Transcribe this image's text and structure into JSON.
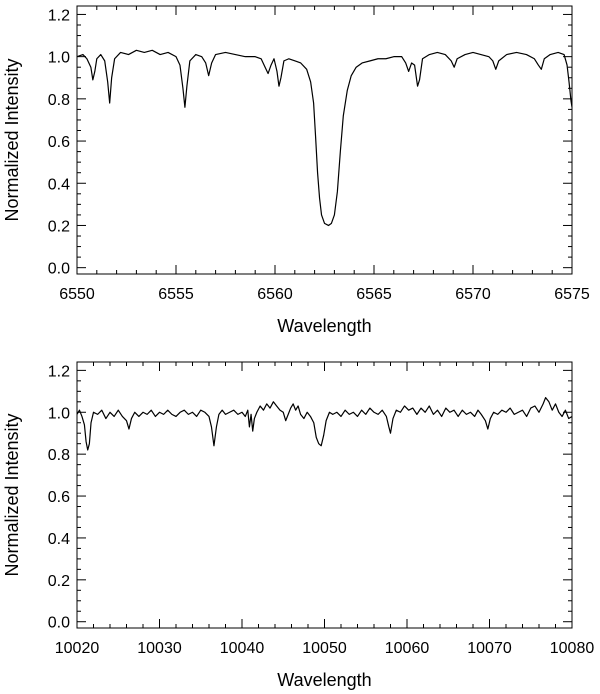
{
  "chart_data": [
    {
      "type": "line",
      "title": "",
      "xlabel": "Wavelength",
      "ylabel": "Normalized Intensity",
      "xlim": [
        6550,
        6575
      ],
      "ylim": [
        -0.03,
        1.24
      ],
      "x_ticks": [
        6550,
        6555,
        6560,
        6565,
        6570,
        6575
      ],
      "x_tick_labels": [
        "6550",
        "6555",
        "6560",
        "6565",
        "6570",
        "6575"
      ],
      "x_minor_step": 1,
      "y_ticks": [
        0.0,
        0.2,
        0.4,
        0.6,
        0.8,
        1.0,
        1.2
      ],
      "y_tick_labels": [
        "0.0",
        "0.2",
        "0.4",
        "0.6",
        "0.8",
        "1.0",
        "1.2"
      ],
      "y_minor_step": 0.05,
      "grid": false,
      "series": [
        {
          "points": [
            [
              6550.0,
              1.0
            ],
            [
              6550.3,
              1.01
            ],
            [
              6550.5,
              0.99
            ],
            [
              6550.7,
              0.95
            ],
            [
              6550.8,
              0.89
            ],
            [
              6550.9,
              0.93
            ],
            [
              6551.0,
              0.99
            ],
            [
              6551.2,
              1.01
            ],
            [
              6551.4,
              0.98
            ],
            [
              6551.55,
              0.88
            ],
            [
              6551.65,
              0.78
            ],
            [
              6551.75,
              0.9
            ],
            [
              6551.9,
              0.99
            ],
            [
              6552.2,
              1.02
            ],
            [
              6552.6,
              1.01
            ],
            [
              6553.0,
              1.03
            ],
            [
              6553.4,
              1.02
            ],
            [
              6553.8,
              1.03
            ],
            [
              6554.2,
              1.01
            ],
            [
              6554.6,
              1.02
            ],
            [
              6555.0,
              1.0
            ],
            [
              6555.2,
              0.96
            ],
            [
              6555.35,
              0.85
            ],
            [
              6555.45,
              0.76
            ],
            [
              6555.55,
              0.86
            ],
            [
              6555.7,
              0.98
            ],
            [
              6556.0,
              1.01
            ],
            [
              6556.3,
              1.0
            ],
            [
              6556.5,
              0.97
            ],
            [
              6556.65,
              0.91
            ],
            [
              6556.8,
              0.97
            ],
            [
              6557.0,
              1.01
            ],
            [
              6557.5,
              1.02
            ],
            [
              6558.0,
              1.01
            ],
            [
              6558.5,
              1.0
            ],
            [
              6559.0,
              1.0
            ],
            [
              6559.3,
              0.99
            ],
            [
              6559.5,
              0.95
            ],
            [
              6559.65,
              0.92
            ],
            [
              6559.8,
              0.96
            ],
            [
              6559.95,
              0.99
            ],
            [
              6560.1,
              0.93
            ],
            [
              6560.2,
              0.86
            ],
            [
              6560.3,
              0.9
            ],
            [
              6560.45,
              0.98
            ],
            [
              6560.7,
              0.99
            ],
            [
              6561.0,
              0.98
            ],
            [
              6561.3,
              0.97
            ],
            [
              6561.6,
              0.94
            ],
            [
              6561.8,
              0.88
            ],
            [
              6561.95,
              0.78
            ],
            [
              6562.05,
              0.62
            ],
            [
              6562.15,
              0.45
            ],
            [
              6562.25,
              0.33
            ],
            [
              6562.35,
              0.25
            ],
            [
              6562.5,
              0.21
            ],
            [
              6562.7,
              0.2
            ],
            [
              6562.85,
              0.21
            ],
            [
              6563.0,
              0.25
            ],
            [
              6563.15,
              0.36
            ],
            [
              6563.3,
              0.55
            ],
            [
              6563.45,
              0.72
            ],
            [
              6563.65,
              0.84
            ],
            [
              6563.85,
              0.91
            ],
            [
              6564.1,
              0.95
            ],
            [
              6564.4,
              0.97
            ],
            [
              6564.8,
              0.98
            ],
            [
              6565.2,
              0.99
            ],
            [
              6565.6,
              0.99
            ],
            [
              6566.0,
              1.0
            ],
            [
              6566.4,
              1.0
            ],
            [
              6566.6,
              0.97
            ],
            [
              6566.75,
              0.93
            ],
            [
              6566.9,
              0.97
            ],
            [
              6567.05,
              0.96
            ],
            [
              6567.2,
              0.86
            ],
            [
              6567.3,
              0.89
            ],
            [
              6567.45,
              0.99
            ],
            [
              6567.8,
              1.01
            ],
            [
              6568.2,
              1.02
            ],
            [
              6568.6,
              1.01
            ],
            [
              6568.9,
              0.98
            ],
            [
              6569.05,
              0.95
            ],
            [
              6569.2,
              0.99
            ],
            [
              6569.6,
              1.01
            ],
            [
              6570.0,
              1.02
            ],
            [
              6570.4,
              1.01
            ],
            [
              6570.8,
              1.0
            ],
            [
              6571.0,
              0.98
            ],
            [
              6571.15,
              0.94
            ],
            [
              6571.3,
              0.98
            ],
            [
              6571.7,
              1.01
            ],
            [
              6572.2,
              1.02
            ],
            [
              6572.7,
              1.01
            ],
            [
              6573.1,
              0.99
            ],
            [
              6573.3,
              0.96
            ],
            [
              6573.45,
              0.94
            ],
            [
              6573.6,
              0.99
            ],
            [
              6573.9,
              1.01
            ],
            [
              6574.3,
              1.02
            ],
            [
              6574.6,
              1.01
            ],
            [
              6574.75,
              0.96
            ],
            [
              6574.85,
              0.88
            ],
            [
              6574.95,
              0.79
            ],
            [
              6575.0,
              0.76
            ]
          ]
        }
      ]
    },
    {
      "type": "line",
      "title": "",
      "xlabel": "Wavelength",
      "ylabel": "Normalized Intensity",
      "xlim": [
        10020,
        10080
      ],
      "ylim": [
        -0.03,
        1.24
      ],
      "x_ticks": [
        10020,
        10030,
        10040,
        10050,
        10060,
        10070,
        10080
      ],
      "x_tick_labels": [
        "10020",
        "10030",
        "10040",
        "10050",
        "10060",
        "10070",
        "10080"
      ],
      "x_minor_step": 2,
      "y_ticks": [
        0.0,
        0.2,
        0.4,
        0.6,
        0.8,
        1.0,
        1.2
      ],
      "y_tick_labels": [
        "0.0",
        "0.2",
        "0.4",
        "0.6",
        "0.8",
        "1.0",
        "1.2"
      ],
      "y_minor_step": 0.05,
      "grid": false,
      "series": [
        {
          "points": [
            [
              10020.0,
              0.99
            ],
            [
              10020.3,
              1.01
            ],
            [
              10020.6,
              0.98
            ],
            [
              10020.9,
              0.94
            ],
            [
              10021.1,
              0.86
            ],
            [
              10021.3,
              0.82
            ],
            [
              10021.5,
              0.85
            ],
            [
              10021.7,
              0.95
            ],
            [
              10022.0,
              1.0
            ],
            [
              10022.5,
              0.99
            ],
            [
              10023.0,
              1.01
            ],
            [
              10023.5,
              0.97
            ],
            [
              10024.0,
              1.0
            ],
            [
              10024.5,
              0.98
            ],
            [
              10025.0,
              1.01
            ],
            [
              10025.5,
              0.98
            ],
            [
              10026.0,
              0.96
            ],
            [
              10026.3,
              0.92
            ],
            [
              10026.6,
              0.97
            ],
            [
              10027.0,
              1.0
            ],
            [
              10027.5,
              0.98
            ],
            [
              10028.0,
              1.0
            ],
            [
              10028.5,
              0.99
            ],
            [
              10029.0,
              1.01
            ],
            [
              10029.5,
              0.98
            ],
            [
              10030.0,
              1.0
            ],
            [
              10030.5,
              0.99
            ],
            [
              10031.0,
              1.01
            ],
            [
              10031.5,
              0.99
            ],
            [
              10032.0,
              0.98
            ],
            [
              10032.5,
              1.0
            ],
            [
              10033.0,
              1.01
            ],
            [
              10033.5,
              0.99
            ],
            [
              10034.0,
              1.0
            ],
            [
              10034.5,
              0.98
            ],
            [
              10035.0,
              1.01
            ],
            [
              10035.5,
              1.0
            ],
            [
              10036.0,
              0.98
            ],
            [
              10036.3,
              0.93
            ],
            [
              10036.6,
              0.84
            ],
            [
              10036.9,
              0.93
            ],
            [
              10037.2,
              0.99
            ],
            [
              10037.6,
              1.01
            ],
            [
              10038.0,
              0.99
            ],
            [
              10038.5,
              1.0
            ],
            [
              10039.0,
              1.01
            ],
            [
              10039.5,
              0.99
            ],
            [
              10040.0,
              1.0
            ],
            [
              10040.4,
              0.98
            ],
            [
              10040.7,
              1.01
            ],
            [
              10040.9,
              0.93
            ],
            [
              10041.1,
              0.99
            ],
            [
              10041.3,
              0.91
            ],
            [
              10041.5,
              0.97
            ],
            [
              10041.8,
              1.0
            ],
            [
              10042.2,
              1.03
            ],
            [
              10042.6,
              1.01
            ],
            [
              10043.0,
              1.04
            ],
            [
              10043.4,
              1.02
            ],
            [
              10043.8,
              1.05
            ],
            [
              10044.2,
              1.03
            ],
            [
              10044.6,
              1.01
            ],
            [
              10045.0,
              1.0
            ],
            [
              10045.3,
              0.96
            ],
            [
              10045.6,
              0.99
            ],
            [
              10045.9,
              1.02
            ],
            [
              10046.2,
              1.04
            ],
            [
              10046.5,
              1.01
            ],
            [
              10046.8,
              1.03
            ],
            [
              10047.1,
              0.99
            ],
            [
              10047.5,
              0.97
            ],
            [
              10047.9,
              1.0
            ],
            [
              10048.3,
              0.98
            ],
            [
              10048.7,
              0.95
            ],
            [
              10049.0,
              0.88
            ],
            [
              10049.3,
              0.85
            ],
            [
              10049.6,
              0.84
            ],
            [
              10049.9,
              0.89
            ],
            [
              10050.2,
              0.96
            ],
            [
              10050.6,
              1.0
            ],
            [
              10051.0,
              0.99
            ],
            [
              10051.5,
              1.0
            ],
            [
              10052.0,
              0.98
            ],
            [
              10052.5,
              1.01
            ],
            [
              10053.0,
              0.99
            ],
            [
              10053.5,
              1.0
            ],
            [
              10054.0,
              0.98
            ],
            [
              10054.5,
              1.01
            ],
            [
              10055.0,
              0.99
            ],
            [
              10055.5,
              1.02
            ],
            [
              10056.0,
              1.0
            ],
            [
              10056.5,
              0.99
            ],
            [
              10057.0,
              1.01
            ],
            [
              10057.5,
              0.98
            ],
            [
              10057.8,
              0.93
            ],
            [
              10058.0,
              0.9
            ],
            [
              10058.3,
              0.97
            ],
            [
              10058.7,
              1.01
            ],
            [
              10059.2,
              1.0
            ],
            [
              10059.7,
              1.03
            ],
            [
              10060.2,
              1.01
            ],
            [
              10060.7,
              1.02
            ],
            [
              10061.2,
              0.99
            ],
            [
              10061.7,
              1.02
            ],
            [
              10062.2,
              1.0
            ],
            [
              10062.7,
              1.03
            ],
            [
              10063.2,
              0.99
            ],
            [
              10063.7,
              1.01
            ],
            [
              10064.2,
              0.98
            ],
            [
              10064.7,
              1.02
            ],
            [
              10065.2,
              1.0
            ],
            [
              10065.7,
              1.01
            ],
            [
              10066.2,
              0.98
            ],
            [
              10066.7,
              1.01
            ],
            [
              10067.2,
              0.99
            ],
            [
              10067.7,
              1.0
            ],
            [
              10068.2,
              0.98
            ],
            [
              10068.6,
              1.01
            ],
            [
              10069.0,
              0.99
            ],
            [
              10069.5,
              0.96
            ],
            [
              10069.8,
              0.92
            ],
            [
              10070.1,
              0.97
            ],
            [
              10070.5,
              1.0
            ],
            [
              10071.0,
              0.99
            ],
            [
              10071.5,
              1.01
            ],
            [
              10072.0,
              1.0
            ],
            [
              10072.5,
              1.02
            ],
            [
              10073.0,
              0.99
            ],
            [
              10073.5,
              1.0
            ],
            [
              10074.0,
              1.01
            ],
            [
              10074.5,
              0.98
            ],
            [
              10075.0,
              1.02
            ],
            [
              10075.5,
              1.03
            ],
            [
              10076.0,
              1.0
            ],
            [
              10076.5,
              1.04
            ],
            [
              10076.8,
              1.07
            ],
            [
              10077.2,
              1.05
            ],
            [
              10077.6,
              1.01
            ],
            [
              10078.0,
              1.04
            ],
            [
              10078.4,
              1.0
            ],
            [
              10078.8,
              0.98
            ],
            [
              10079.2,
              1.01
            ],
            [
              10079.6,
              0.97
            ],
            [
              10080.0,
              0.98
            ]
          ]
        }
      ]
    }
  ]
}
